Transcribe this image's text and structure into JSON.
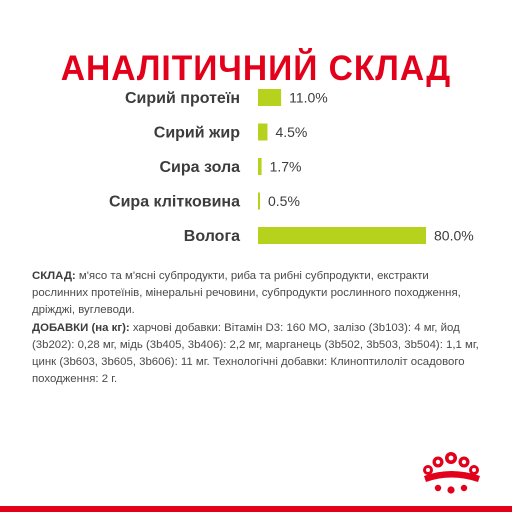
{
  "title": "АНАЛІТИЧНИЙ СКЛАД",
  "chart_data": {
    "type": "bar",
    "orientation": "horizontal",
    "categories": [
      "Сирий протеїн",
      "Сирий жир",
      "Сира зола",
      "Сира клітковина",
      "Волога"
    ],
    "values": [
      11.0,
      4.5,
      1.7,
      0.5,
      80.0
    ],
    "value_labels": [
      "11.0%",
      "4.5%",
      "1.7%",
      "0.5%",
      "80.0%"
    ],
    "unit": "%",
    "bar_color": "#b6d21c",
    "title": "АНАЛІТИЧНИЙ СКЛАД",
    "xlabel": "",
    "ylabel": "",
    "grid": false,
    "legend": "none"
  },
  "composition": {
    "label": "СКЛАД:",
    "text": " м'ясо та м'ясні субпродукти, риба та рибні субпродукти, екстракти рослинних протеїнів, мінеральні речовини, субпродукти рослинного походження, дріжджі, вуглеводи."
  },
  "additives": {
    "label": "ДОБАВКИ (на кг):",
    "text": " харчові добавки: Вітамін D3: 160 МО, залізо (3b103): 4 мг, йод (3b202): 0,28 мг, мідь (3b405, 3b406): 2,2 мг, марганець (3b502, 3b503, 3b504): 1,1 мг, цинк (3b603, 3b605, 3b606): 11 мг. Технологічні добавки: Клиноптилоліт осадового походження: 2 г."
  },
  "colors": {
    "title": "#e2001a",
    "bar": "#b6d21c",
    "text": "#3c3c3c",
    "brand": "#e2001a"
  },
  "logo_icon": "royal-canin-crown-icon"
}
